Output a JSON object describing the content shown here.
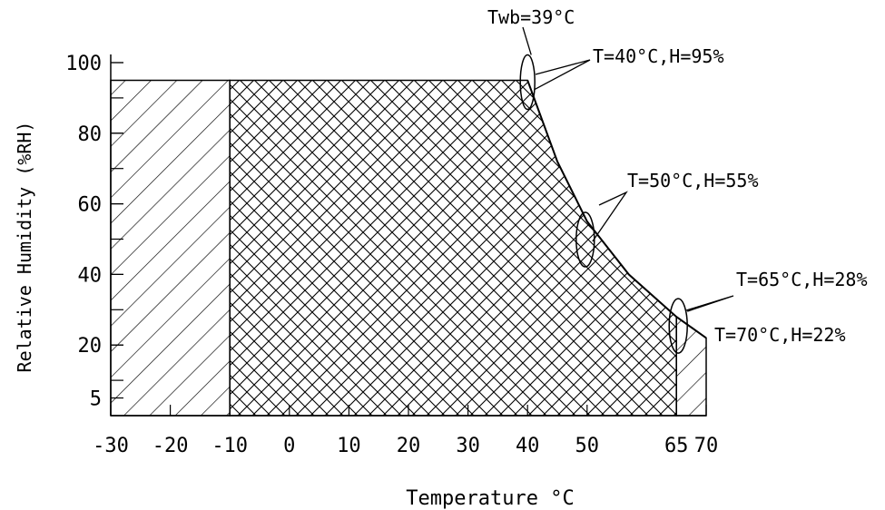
{
  "chart_data": {
    "type": "area",
    "xlabel": "Temperature °C",
    "ylabel": "Relative Humidity (%RH)",
    "xticks": [
      {
        "value": -30,
        "label": "-30"
      },
      {
        "value": -20,
        "label": "-20"
      },
      {
        "value": -10,
        "label": "-10"
      },
      {
        "value": 0,
        "label": "0"
      },
      {
        "value": 10,
        "label": "10"
      },
      {
        "value": 20,
        "label": "20"
      },
      {
        "value": 30,
        "label": "30"
      },
      {
        "value": 40,
        "label": "40"
      },
      {
        "value": 50,
        "label": "50"
      },
      {
        "value": 65,
        "label": "65"
      },
      {
        "value": 70,
        "label": "70"
      }
    ],
    "yticks": [
      {
        "value": 5,
        "label": "5"
      },
      {
        "value": 20,
        "label": "20"
      },
      {
        "value": 40,
        "label": "40"
      },
      {
        "value": 60,
        "label": "60"
      },
      {
        "value": 80,
        "label": "80"
      },
      {
        "value": 100,
        "label": "100"
      }
    ],
    "xlim": [
      -30,
      70
    ],
    "ylim": [
      0,
      100
    ],
    "regions": [
      {
        "id": "single-hatch",
        "pattern": "diagonal",
        "points": [
          [
            -30,
            0
          ],
          [
            -30,
            95
          ],
          [
            -10,
            95
          ],
          [
            -10,
            0
          ]
        ]
      },
      {
        "id": "cross-hatch",
        "pattern": "crosshatch",
        "points": [
          [
            -10,
            0
          ],
          [
            -10,
            95
          ],
          [
            40,
            95
          ],
          [
            45,
            72
          ],
          [
            50,
            55
          ],
          [
            57,
            40
          ],
          [
            65,
            28
          ],
          [
            65,
            0
          ]
        ]
      },
      {
        "id": "single-hatch-right",
        "pattern": "diagonal",
        "points": [
          [
            65,
            0
          ],
          [
            65,
            28
          ],
          [
            70,
            22
          ],
          [
            70,
            0
          ]
        ]
      }
    ],
    "boundary": [
      [
        40,
        95
      ],
      [
        45,
        72
      ],
      [
        50,
        55
      ],
      [
        57,
        40
      ],
      [
        65,
        28
      ],
      [
        70,
        22
      ]
    ],
    "annotations": [
      {
        "text": "Twb=39°C",
        "x": 40,
        "y": 95
      },
      {
        "text": "T=40°C,H=95%",
        "x": 40,
        "y": 95
      },
      {
        "text": "T=50°C,H=55%",
        "x": 50,
        "y": 55
      },
      {
        "text": "T=65°C,H=28%",
        "x": 65,
        "y": 28
      },
      {
        "text": "T=70°C,H=22%",
        "x": 70,
        "y": 22
      }
    ]
  }
}
